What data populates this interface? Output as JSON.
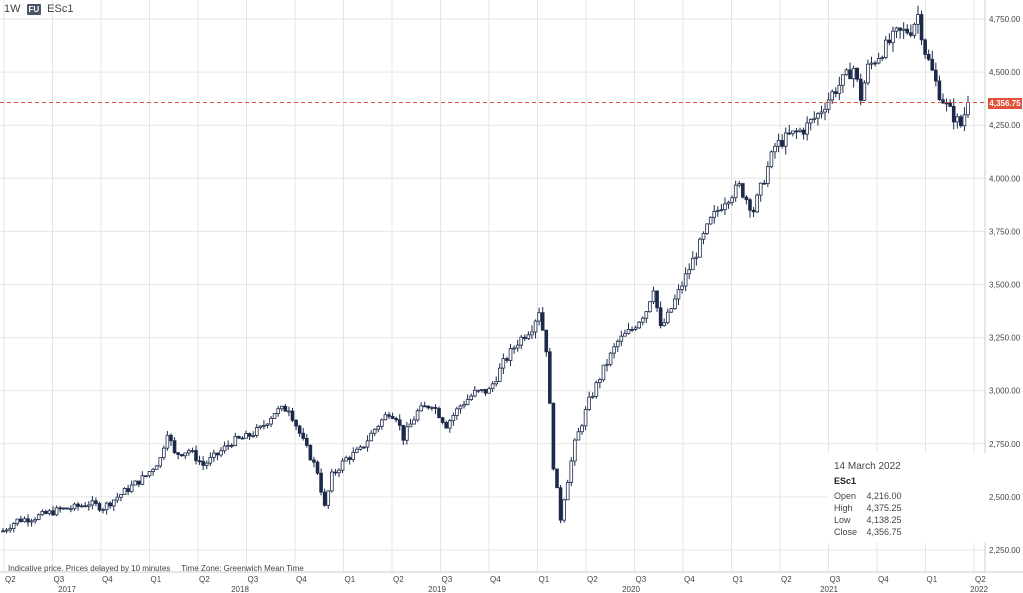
{
  "header": {
    "interval": "1W",
    "badge": "FU",
    "symbol": "ESc1"
  },
  "footer": {
    "note": "Indicative price. Prices delayed by 10 minutes",
    "timezone": "Time Zone: Greenwich Mean Time"
  },
  "current_price_label": "4,356.75",
  "colors": {
    "candle": "#1c2a4a",
    "price_line": "#e0513a",
    "grid": "#e6e6e6"
  },
  "infobox": {
    "date": "14 March 2022",
    "symbol": "ESc1",
    "open_label": "Open",
    "open": "4,216.00",
    "high_label": "High",
    "high": "4,375.25",
    "low_label": "Low",
    "low": "4,138.25",
    "close_label": "Close",
    "close": "4,356.75"
  },
  "chart_data": {
    "type": "candlestick",
    "interval": "1W",
    "y_ticks": [
      "2,250.00",
      "2,500.00",
      "2,750.00",
      "3,000.00",
      "3,250.00",
      "3,500.00",
      "3,750.00",
      "4,000.00",
      "4,250.00",
      "4,500.00",
      "4,750.00"
    ],
    "ylim": [
      2150,
      4800
    ],
    "current_price": 4356.75,
    "x_quarter_labels": [
      "Q2",
      "Q3",
      "Q4",
      "Q1",
      "Q2",
      "Q3",
      "Q4",
      "Q1",
      "Q2",
      "Q3",
      "Q4",
      "Q1",
      "Q2",
      "Q3",
      "Q4",
      "Q1",
      "Q2",
      "Q3",
      "Q4",
      "Q1",
      "Q2"
    ],
    "x_year_labels": [
      "2017",
      "2018",
      "2019",
      "2020",
      "2021",
      "2022"
    ],
    "price_path": [
      [
        0,
        2340
      ],
      [
        4,
        2390
      ],
      [
        8,
        2400
      ],
      [
        12,
        2420
      ],
      [
        16,
        2440
      ],
      [
        20,
        2450
      ],
      [
        24,
        2470
      ],
      [
        28,
        2450
      ],
      [
        32,
        2500
      ],
      [
        36,
        2550
      ],
      [
        40,
        2600
      ],
      [
        44,
        2680
      ],
      [
        46,
        2810
      ],
      [
        48,
        2700
      ],
      [
        52,
        2720
      ],
      [
        56,
        2650
      ],
      [
        60,
        2700
      ],
      [
        64,
        2760
      ],
      [
        68,
        2780
      ],
      [
        72,
        2820
      ],
      [
        76,
        2900
      ],
      [
        80,
        2920
      ],
      [
        84,
        2760
      ],
      [
        88,
        2620
      ],
      [
        90,
        2450
      ],
      [
        92,
        2600
      ],
      [
        96,
        2680
      ],
      [
        100,
        2720
      ],
      [
        104,
        2820
      ],
      [
        108,
        2900
      ],
      [
        110,
        2880
      ],
      [
        112,
        2780
      ],
      [
        116,
        2900
      ],
      [
        120,
        2940
      ],
      [
        124,
        2840
      ],
      [
        128,
        2930
      ],
      [
        132,
        2990
      ],
      [
        136,
        3000
      ],
      [
        140,
        3130
      ],
      [
        144,
        3230
      ],
      [
        148,
        3300
      ],
      [
        150,
        3380
      ],
      [
        152,
        3200
      ],
      [
        154,
        2650
      ],
      [
        156,
        2400
      ],
      [
        157,
        2500
      ],
      [
        160,
        2750
      ],
      [
        164,
        2950
      ],
      [
        168,
        3100
      ],
      [
        172,
        3230
      ],
      [
        176,
        3290
      ],
      [
        180,
        3380
      ],
      [
        182,
        3490
      ],
      [
        184,
        3290
      ],
      [
        186,
        3350
      ],
      [
        190,
        3500
      ],
      [
        194,
        3650
      ],
      [
        198,
        3800
      ],
      [
        202,
        3900
      ],
      [
        206,
        3960
      ],
      [
        210,
        3850
      ],
      [
        212,
        3950
      ],
      [
        216,
        4150
      ],
      [
        220,
        4200
      ],
      [
        224,
        4230
      ],
      [
        228,
        4300
      ],
      [
        232,
        4400
      ],
      [
        236,
        4480
      ],
      [
        238,
        4520
      ],
      [
        240,
        4380
      ],
      [
        242,
        4520
      ],
      [
        246,
        4600
      ],
      [
        250,
        4680
      ],
      [
        254,
        4700
      ],
      [
        256,
        4770
      ],
      [
        258,
        4600
      ],
      [
        260,
        4500
      ],
      [
        262,
        4400
      ],
      [
        264,
        4340
      ],
      [
        266,
        4290
      ],
      [
        268,
        4250
      ],
      [
        270,
        4356.75
      ]
    ]
  }
}
